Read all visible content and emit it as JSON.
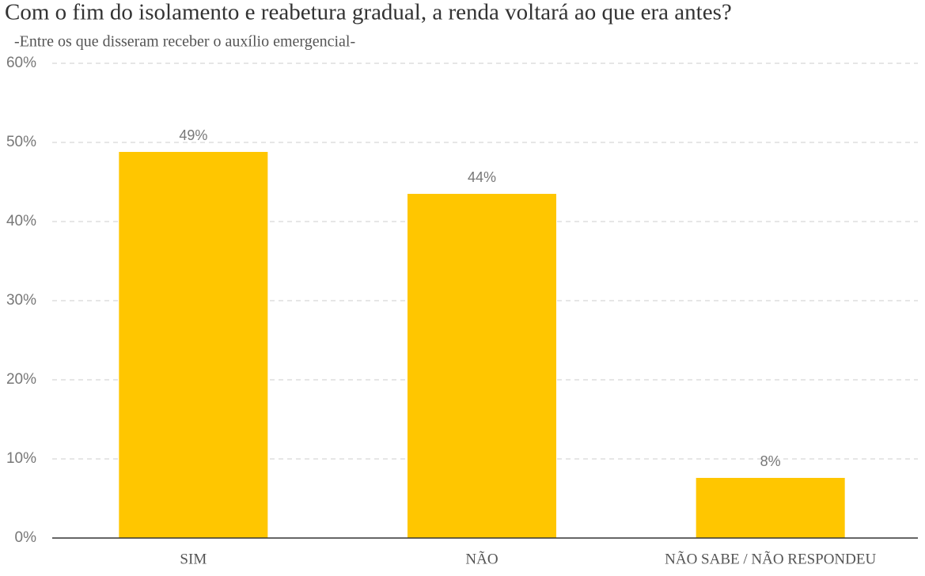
{
  "chart_data": {
    "type": "bar",
    "title": "Com o fim do isolamento e reabetura gradual, a renda voltará ao que era antes?",
    "subtitle": "-Entre os que disseram receber o auxílio emergencial-",
    "categories": [
      "SIM",
      "NÃO",
      "NÃO SABE / NÃO RESPONDEU"
    ],
    "values": [
      48.8,
      43.5,
      7.6
    ],
    "value_labels": [
      "49%",
      "44%",
      "8%"
    ],
    "color": "#ffc600",
    "ylim": [
      0,
      60
    ],
    "yticks": [
      {
        "value": 0,
        "label": "0%"
      },
      {
        "value": 10,
        "label": "10%"
      },
      {
        "value": 20,
        "label": "20%"
      },
      {
        "value": 30,
        "label": "30%"
      },
      {
        "value": 40,
        "label": "40%"
      },
      {
        "value": 50,
        "label": "50%"
      },
      {
        "value": 60,
        "label": "60%"
      }
    ],
    "grid": true
  }
}
